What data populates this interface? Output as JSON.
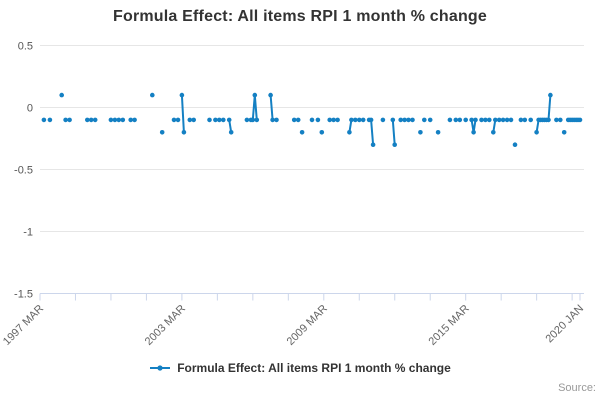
{
  "chart": {
    "title": "Formula Effect: All items RPI 1 month % change",
    "legend_label": "Formula Effect: All items RPI 1 month % change",
    "source_label": "Source:",
    "colors": {
      "series": "#1480c3",
      "grid": "#e6e6e6",
      "axis": "#ccd6eb",
      "title_text": "#333333",
      "x_label": "#666666",
      "y_label": "#555555",
      "source_text": "#999999"
    }
  },
  "chart_data": {
    "type": "line",
    "title": "Formula Effect: All items RPI 1 month % change",
    "xlabel": "",
    "ylabel": "",
    "x_unit": "months since 1997 MAR",
    "x_total_months": 274,
    "ylim": [
      -1.5,
      0.5
    ],
    "yticks": [
      0.5,
      0,
      -0.5,
      -1,
      -1.5
    ],
    "xticks": [
      {
        "pos": 0,
        "label": "1997 MAR"
      },
      {
        "pos": 72,
        "label": "2003 MAR"
      },
      {
        "pos": 144,
        "label": "2009 MAR"
      },
      {
        "pos": 216,
        "label": "2015 MAR"
      },
      {
        "pos": 274,
        "label": "2020 JAN"
      }
    ],
    "minor_xtick_step": 18,
    "grid": "horizontal",
    "legend_position": "bottom",
    "series": [
      {
        "name": "Formula Effect: All items RPI 1 month % change",
        "marker": "circle",
        "points": [
          [
            2,
            -0.1
          ],
          [
            5,
            -0.1
          ],
          [
            11,
            0.1
          ],
          [
            13,
            -0.1
          ],
          [
            15,
            -0.1
          ],
          [
            24,
            -0.1
          ],
          [
            26,
            -0.1
          ],
          [
            28,
            -0.1
          ],
          [
            36,
            -0.1
          ],
          [
            38,
            -0.1
          ],
          [
            40,
            -0.1
          ],
          [
            42,
            -0.1
          ],
          [
            46,
            -0.1
          ],
          [
            48,
            -0.1
          ],
          [
            57,
            0.1
          ],
          [
            62,
            -0.2
          ],
          [
            68,
            -0.1
          ],
          [
            70,
            -0.1
          ],
          [
            72,
            0.1
          ],
          [
            73,
            -0.2
          ],
          [
            76,
            -0.1
          ],
          [
            78,
            -0.1
          ],
          [
            86,
            -0.1
          ],
          [
            89,
            -0.1
          ],
          [
            91,
            -0.1
          ],
          [
            93,
            -0.1
          ],
          [
            96,
            -0.1
          ],
          [
            97,
            -0.2
          ],
          [
            105,
            -0.1
          ],
          [
            107,
            -0.1
          ],
          [
            108,
            -0.1
          ],
          [
            109,
            0.1
          ],
          [
            110,
            -0.1
          ],
          [
            117,
            0.1
          ],
          [
            118,
            -0.1
          ],
          [
            120,
            -0.1
          ],
          [
            129,
            -0.1
          ],
          [
            131,
            -0.1
          ],
          [
            133,
            -0.2
          ],
          [
            138,
            -0.1
          ],
          [
            141,
            -0.1
          ],
          [
            143,
            -0.2
          ],
          [
            147,
            -0.1
          ],
          [
            149,
            -0.1
          ],
          [
            151,
            -0.1
          ],
          [
            157,
            -0.2
          ],
          [
            158,
            -0.1
          ],
          [
            160,
            -0.1
          ],
          [
            162,
            -0.1
          ],
          [
            164,
            -0.1
          ],
          [
            167,
            -0.1
          ],
          [
            168,
            -0.1
          ],
          [
            169,
            -0.3
          ],
          [
            174,
            -0.1
          ],
          [
            179,
            -0.1
          ],
          [
            180,
            -0.3
          ],
          [
            183,
            -0.1
          ],
          [
            185,
            -0.1
          ],
          [
            187,
            -0.1
          ],
          [
            189,
            -0.1
          ],
          [
            193,
            -0.2
          ],
          [
            195,
            -0.1
          ],
          [
            198,
            -0.1
          ],
          [
            202,
            -0.2
          ],
          [
            208,
            -0.1
          ],
          [
            211,
            -0.1
          ],
          [
            213,
            -0.1
          ],
          [
            216,
            -0.1
          ],
          [
            219,
            -0.1
          ],
          [
            220,
            -0.2
          ],
          [
            221,
            -0.1
          ],
          [
            224,
            -0.1
          ],
          [
            226,
            -0.1
          ],
          [
            228,
            -0.1
          ],
          [
            230,
            -0.2
          ],
          [
            231,
            -0.1
          ],
          [
            233,
            -0.1
          ],
          [
            235,
            -0.1
          ],
          [
            237,
            -0.1
          ],
          [
            239,
            -0.1
          ],
          [
            241,
            -0.3
          ],
          [
            244,
            -0.1
          ],
          [
            246,
            -0.1
          ],
          [
            249,
            -0.1
          ],
          [
            252,
            -0.2
          ],
          [
            253,
            -0.1
          ],
          [
            254,
            -0.1
          ],
          [
            255,
            -0.1
          ],
          [
            256,
            -0.1
          ],
          [
            257,
            -0.1
          ],
          [
            258,
            -0.1
          ],
          [
            259,
            0.1
          ],
          [
            262,
            -0.1
          ],
          [
            264,
            -0.1
          ],
          [
            266,
            -0.2
          ],
          [
            268,
            -0.1
          ],
          [
            269,
            -0.1
          ],
          [
            270,
            -0.1
          ],
          [
            271,
            -0.1
          ],
          [
            272,
            -0.1
          ],
          [
            273,
            -0.1
          ],
          [
            274,
            -0.1
          ]
        ]
      }
    ]
  }
}
